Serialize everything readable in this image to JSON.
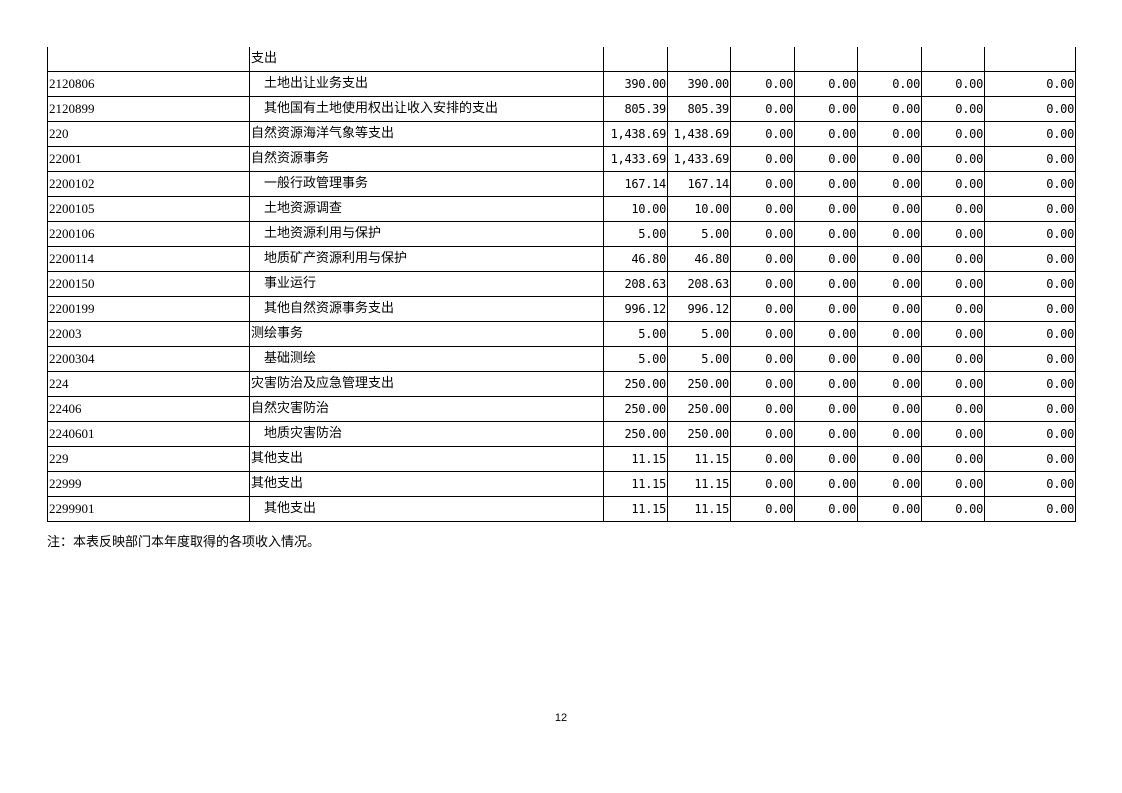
{
  "table": {
    "rows": [
      {
        "code": "",
        "name": "支出",
        "indent": false,
        "values": [
          "",
          "",
          "",
          "",
          "",
          "",
          ""
        ]
      },
      {
        "code": "2120806",
        "name": "土地出让业务支出",
        "indent": true,
        "values": [
          "390.00",
          "390.00",
          "0.00",
          "0.00",
          "0.00",
          "0.00",
          "0.00"
        ]
      },
      {
        "code": "2120899",
        "name": "其他国有土地使用权出让收入安排的支出",
        "indent": true,
        "values": [
          "805.39",
          "805.39",
          "0.00",
          "0.00",
          "0.00",
          "0.00",
          "0.00"
        ]
      },
      {
        "code": "220",
        "name": "自然资源海洋气象等支出",
        "indent": false,
        "values": [
          "1,438.69",
          "1,438.69",
          "0.00",
          "0.00",
          "0.00",
          "0.00",
          "0.00"
        ]
      },
      {
        "code": "22001",
        "name": "自然资源事务",
        "indent": false,
        "values": [
          "1,433.69",
          "1,433.69",
          "0.00",
          "0.00",
          "0.00",
          "0.00",
          "0.00"
        ]
      },
      {
        "code": "2200102",
        "name": "一般行政管理事务",
        "indent": true,
        "values": [
          "167.14",
          "167.14",
          "0.00",
          "0.00",
          "0.00",
          "0.00",
          "0.00"
        ]
      },
      {
        "code": "2200105",
        "name": "土地资源调查",
        "indent": true,
        "values": [
          "10.00",
          "10.00",
          "0.00",
          "0.00",
          "0.00",
          "0.00",
          "0.00"
        ]
      },
      {
        "code": "2200106",
        "name": "土地资源利用与保护",
        "indent": true,
        "values": [
          "5.00",
          "5.00",
          "0.00",
          "0.00",
          "0.00",
          "0.00",
          "0.00"
        ]
      },
      {
        "code": "2200114",
        "name": "地质矿产资源利用与保护",
        "indent": true,
        "values": [
          "46.80",
          "46.80",
          "0.00",
          "0.00",
          "0.00",
          "0.00",
          "0.00"
        ]
      },
      {
        "code": "2200150",
        "name": "事业运行",
        "indent": true,
        "values": [
          "208.63",
          "208.63",
          "0.00",
          "0.00",
          "0.00",
          "0.00",
          "0.00"
        ]
      },
      {
        "code": "2200199",
        "name": "其他自然资源事务支出",
        "indent": true,
        "values": [
          "996.12",
          "996.12",
          "0.00",
          "0.00",
          "0.00",
          "0.00",
          "0.00"
        ]
      },
      {
        "code": "22003",
        "name": "测绘事务",
        "indent": false,
        "values": [
          "5.00",
          "5.00",
          "0.00",
          "0.00",
          "0.00",
          "0.00",
          "0.00"
        ]
      },
      {
        "code": "2200304",
        "name": "基础测绘",
        "indent": true,
        "values": [
          "5.00",
          "5.00",
          "0.00",
          "0.00",
          "0.00",
          "0.00",
          "0.00"
        ]
      },
      {
        "code": "224",
        "name": "灾害防治及应急管理支出",
        "indent": false,
        "values": [
          "250.00",
          "250.00",
          "0.00",
          "0.00",
          "0.00",
          "0.00",
          "0.00"
        ]
      },
      {
        "code": "22406",
        "name": "自然灾害防治",
        "indent": false,
        "values": [
          "250.00",
          "250.00",
          "0.00",
          "0.00",
          "0.00",
          "0.00",
          "0.00"
        ]
      },
      {
        "code": "2240601",
        "name": "地质灾害防治",
        "indent": true,
        "values": [
          "250.00",
          "250.00",
          "0.00",
          "0.00",
          "0.00",
          "0.00",
          "0.00"
        ]
      },
      {
        "code": "229",
        "name": "其他支出",
        "indent": false,
        "values": [
          "11.15",
          "11.15",
          "0.00",
          "0.00",
          "0.00",
          "0.00",
          "0.00"
        ]
      },
      {
        "code": "22999",
        "name": "其他支出",
        "indent": false,
        "values": [
          "11.15",
          "11.15",
          "0.00",
          "0.00",
          "0.00",
          "0.00",
          "0.00"
        ]
      },
      {
        "code": "2299901",
        "name": "其他支出",
        "indent": true,
        "values": [
          "11.15",
          "11.15",
          "0.00",
          "0.00",
          "0.00",
          "0.00",
          "0.00"
        ]
      }
    ]
  },
  "note": "注：本表反映部门本年度取得的各项收入情况。",
  "page_number": "12"
}
